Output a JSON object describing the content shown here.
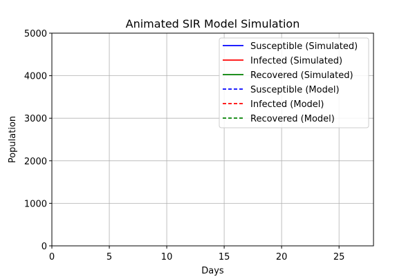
{
  "chart_data": {
    "type": "line",
    "title": "Animated SIR Model Simulation",
    "xlabel": "Days",
    "ylabel": "Population",
    "xlim": [
      0,
      28
    ],
    "ylim": [
      0,
      5000
    ],
    "xticks": [
      0,
      5,
      10,
      15,
      20,
      25
    ],
    "yticks": [
      0,
      1000,
      2000,
      3000,
      4000,
      5000
    ],
    "grid": true,
    "legend_position": "top-right",
    "series": [
      {
        "name": "Susceptible (Simulated)",
        "color": "#0000ff",
        "linestyle": "solid",
        "x": [],
        "y": []
      },
      {
        "name": "Infected (Simulated)",
        "color": "#ff0000",
        "linestyle": "solid",
        "x": [],
        "y": []
      },
      {
        "name": "Recovered (Simulated)",
        "color": "#008000",
        "linestyle": "solid",
        "x": [],
        "y": []
      },
      {
        "name": "Susceptible (Model)",
        "color": "#0000ff",
        "linestyle": "dashed",
        "x": [],
        "y": []
      },
      {
        "name": "Infected (Model)",
        "color": "#ff0000",
        "linestyle": "dashed",
        "x": [],
        "y": []
      },
      {
        "name": "Recovered (Model)",
        "color": "#008000",
        "linestyle": "dashed",
        "x": [],
        "y": []
      }
    ]
  }
}
